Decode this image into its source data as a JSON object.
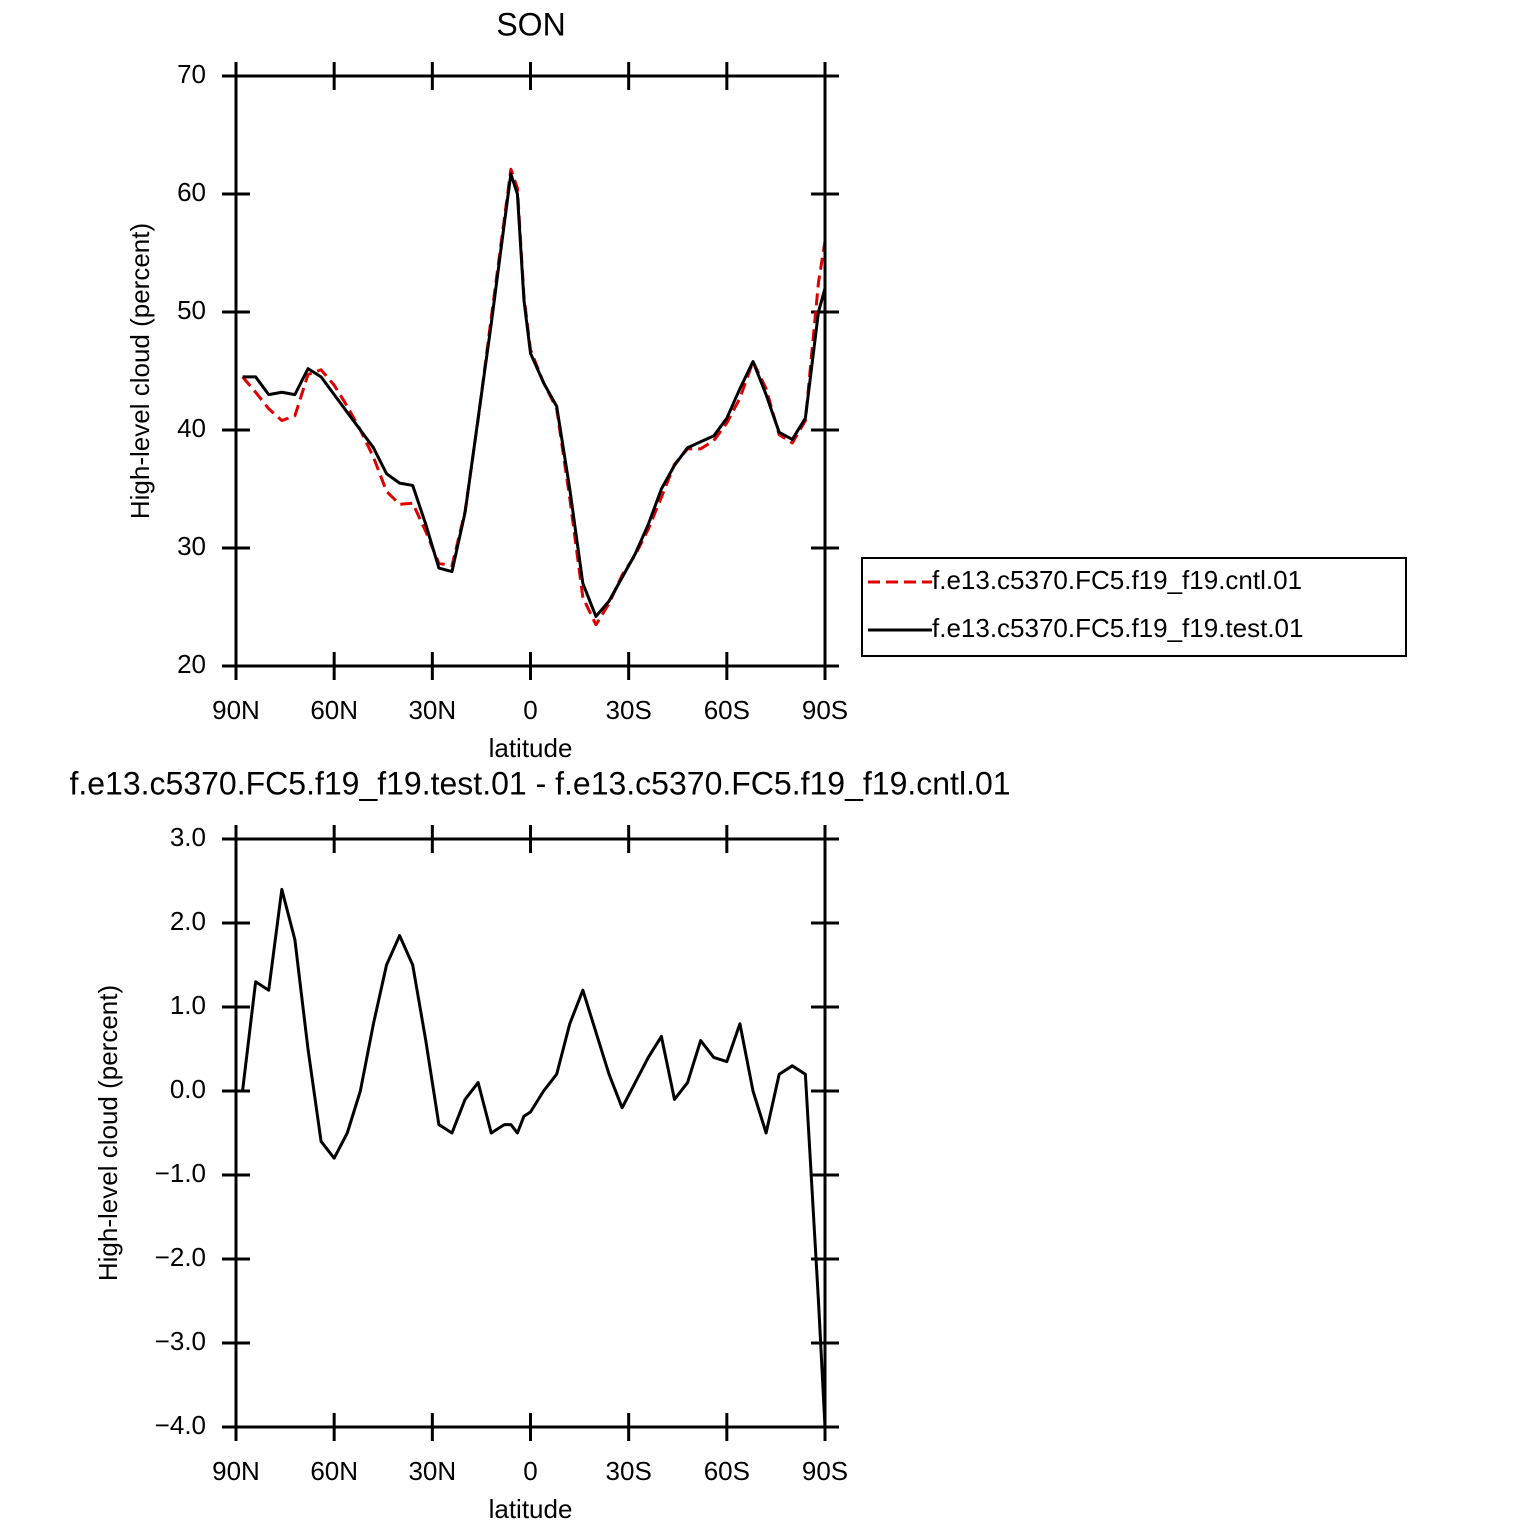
{
  "chart_data": [
    {
      "type": "line",
      "title": "SON",
      "xlabel": "latitude",
      "ylabel": "High-level cloud (percent)",
      "x": [
        88,
        84,
        80,
        76,
        72,
        68,
        64,
        60,
        56,
        52,
        48,
        44,
        40,
        36,
        32,
        28,
        24,
        20,
        16,
        12,
        8,
        6,
        4,
        2,
        0,
        -4,
        -8,
        -12,
        -16,
        -20,
        -24,
        -28,
        -32,
        -36,
        -40,
        -44,
        -48,
        -52,
        -56,
        -60,
        -64,
        -68,
        -72,
        -76,
        -80,
        -84,
        -88,
        -90
      ],
      "series": [
        {
          "name": "f.e13.c5370.FC5.f19_f19.cntl.01",
          "color": "#e00000",
          "line_style": "dashed",
          "values": [
            44.5,
            43.2,
            41.8,
            40.8,
            41.2,
            44.7,
            45.1,
            43.8,
            42,
            40,
            37.7,
            34.8,
            33.7,
            33.8,
            31.4,
            28.7,
            28.5,
            33.1,
            40.9,
            49.5,
            57.9,
            62.1,
            60.5,
            51.3,
            46.8,
            44,
            41.8,
            34.2,
            25.8,
            23.5,
            25.3,
            27.7,
            29.4,
            31.6,
            34.3,
            37.1,
            38.4,
            38.4,
            39.1,
            40.6,
            42.7,
            45.8,
            43.5,
            39.6,
            38.9,
            40.8,
            52.5,
            56
          ]
        },
        {
          "name": "f.e13.c5370.FC5.f19_f19.test.01",
          "color": "#000000",
          "line_style": "solid",
          "values": [
            44.5,
            44.5,
            43,
            43.2,
            43,
            45.2,
            44.5,
            43,
            41.5,
            40,
            38.5,
            36.3,
            35.5,
            35.3,
            32,
            28.3,
            28,
            33,
            41,
            49,
            57.5,
            61.7,
            60,
            51,
            46.5,
            44,
            42,
            35,
            27,
            24.2,
            25.5,
            27.5,
            29.5,
            32,
            35,
            37,
            38.5,
            39,
            39.5,
            41,
            43.5,
            45.8,
            43,
            39.8,
            39.2,
            41,
            50,
            52
          ]
        }
      ],
      "xlim": [
        90,
        -90
      ],
      "xticks": [
        {
          "value": 90,
          "label": "90N"
        },
        {
          "value": 60,
          "label": "60N"
        },
        {
          "value": 30,
          "label": "30N"
        },
        0,
        {
          "value": -30,
          "label": "30S"
        },
        {
          "value": -60,
          "label": "60S"
        },
        {
          "value": -90,
          "label": "90S"
        }
      ],
      "ylim": [
        20,
        70
      ],
      "yticks": [
        20,
        30,
        40,
        50,
        60,
        70
      ],
      "legend": "right"
    },
    {
      "type": "line",
      "title": "f.e13.c5370.FC5.f19_f19.test.01 - f.e13.c5370.FC5.f19_f19.cntl.01",
      "xlabel": "latitude",
      "ylabel": "High-level cloud (percent)",
      "x": [
        88,
        84,
        80,
        76,
        72,
        68,
        64,
        60,
        56,
        52,
        48,
        44,
        40,
        36,
        32,
        28,
        24,
        20,
        16,
        12,
        8,
        6,
        4,
        2,
        0,
        -4,
        -8,
        -12,
        -16,
        -20,
        -24,
        -28,
        -32,
        -36,
        -40,
        -44,
        -48,
        -52,
        -56,
        -60,
        -64,
        -68,
        -72,
        -76,
        -80,
        -84,
        -88,
        -90
      ],
      "series": [
        {
          "color": "#000000",
          "line_style": "solid",
          "values": [
            0.0,
            1.3,
            1.2,
            2.4,
            1.8,
            0.5,
            -0.6,
            -0.8,
            -0.5,
            0.0,
            0.8,
            1.5,
            1.85,
            1.5,
            0.6,
            -0.4,
            -0.5,
            -0.1,
            0.1,
            -0.5,
            -0.4,
            -0.4,
            -0.5,
            -0.3,
            -0.25,
            0.0,
            0.2,
            0.8,
            1.2,
            0.7,
            0.2,
            -0.2,
            0.1,
            0.4,
            0.65,
            -0.1,
            0.1,
            0.6,
            0.4,
            0.35,
            0.8,
            0.0,
            -0.5,
            0.2,
            0.3,
            0.2,
            -2.5,
            -4.0
          ]
        }
      ],
      "xlim": [
        90,
        -90
      ],
      "xticks": [
        {
          "value": 90,
          "label": "90N"
        },
        {
          "value": 60,
          "label": "60N"
        },
        {
          "value": 30,
          "label": "30N"
        },
        0,
        {
          "value": -30,
          "label": "30S"
        },
        {
          "value": -60,
          "label": "60S"
        },
        {
          "value": -90,
          "label": "90S"
        }
      ],
      "ylim": [
        -4,
        3
      ],
      "yticks": [
        {
          "value": -4,
          "label": "−4.0"
        },
        {
          "value": -3,
          "label": "−3.0"
        },
        {
          "value": -2,
          "label": "−2.0"
        },
        {
          "value": -1,
          "label": "−1.0"
        },
        {
          "value": 0,
          "label": "0.0"
        },
        {
          "value": 1,
          "label": "1.0"
        },
        {
          "value": 2,
          "label": "2.0"
        },
        {
          "value": 3,
          "label": "3.0"
        }
      ]
    }
  ]
}
